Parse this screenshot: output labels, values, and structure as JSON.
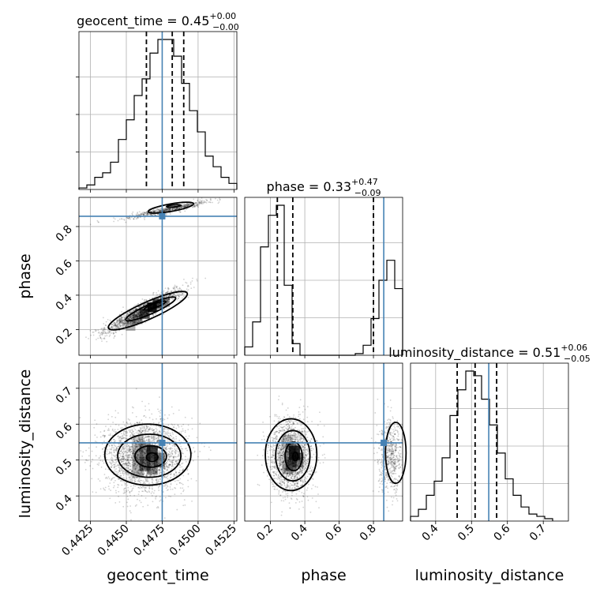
{
  "chart_data": {
    "type": "corner",
    "parameters": [
      "geocent_time",
      "phase",
      "luminosity_distance"
    ],
    "titles": [
      {
        "name": "geocent_time",
        "median": "0.45",
        "plus": "+0.00",
        "minus": "−0.00"
      },
      {
        "name": "phase",
        "median": "0.33",
        "plus": "+0.47",
        "minus": "−0.09"
      },
      {
        "name": "luminosity_distance",
        "median": "0.51",
        "plus": "+0.06",
        "minus": "−0.05"
      }
    ],
    "ranges": {
      "geocent_time": [
        0.4417,
        0.4527
      ],
      "phase": [
        0.05,
        0.97
      ],
      "luminosity_distance": [
        0.33,
        0.77
      ]
    },
    "truths": {
      "geocent_time": 0.4475,
      "phase": 0.86,
      "luminosity_distance": 0.548
    },
    "quantiles": {
      "geocent_time": [
        0.449,
        0.4464,
        0.4482
      ],
      "phase": [
        0.24,
        0.33,
        0.8
      ],
      "luminosity_distance": [
        0.46,
        0.51,
        0.57
      ]
    },
    "histograms": {
      "geocent_time": {
        "edges_start": 0.4417,
        "bin_width": 0.00055,
        "counts": [
          1,
          3,
          8,
          11,
          18,
          33,
          46,
          62,
          73,
          90,
          99,
          99,
          88,
          70,
          52,
          38,
          22,
          15,
          8,
          4
        ]
      },
      "phase": {
        "edges_start": 0.05,
        "bin_width": 0.046,
        "counts": [
          5,
          20,
          65,
          84,
          90,
          42,
          7,
          0,
          0,
          0,
          0,
          0,
          0,
          0,
          1,
          6,
          22,
          45,
          57,
          40
        ]
      },
      "luminosity_distance": {
        "edges_start": 0.33,
        "bin_width": 0.022,
        "counts": [
          2,
          5,
          11,
          17,
          27,
          45,
          56,
          64,
          62,
          52,
          41,
          29,
          18,
          11,
          6,
          3,
          2,
          1
        ]
      }
    },
    "yticks_phase": [
      "0.2",
      "0.4",
      "0.6",
      "0.8"
    ],
    "yticks_luminosity_distance": [
      "0.4",
      "0.5",
      "0.6",
      "0.7"
    ],
    "xticks_geocent_time": [
      "0.4425",
      "0.4450",
      "0.4475",
      "0.4500",
      "0.4525"
    ],
    "xticks_phase": [
      "0.2",
      "0.4",
      "0.6",
      "0.8"
    ],
    "xticks_luminosity_distance": [
      "0.4",
      "0.5",
      "0.6",
      "0.7"
    ],
    "xlabels": [
      "geocent_time",
      "phase",
      "luminosity_distance"
    ],
    "ylabels": [
      "phase",
      "luminosity_distance"
    ],
    "grid": true,
    "colors": {
      "truth": "#4682b4",
      "lines": "#000000",
      "density": "#000000"
    }
  }
}
